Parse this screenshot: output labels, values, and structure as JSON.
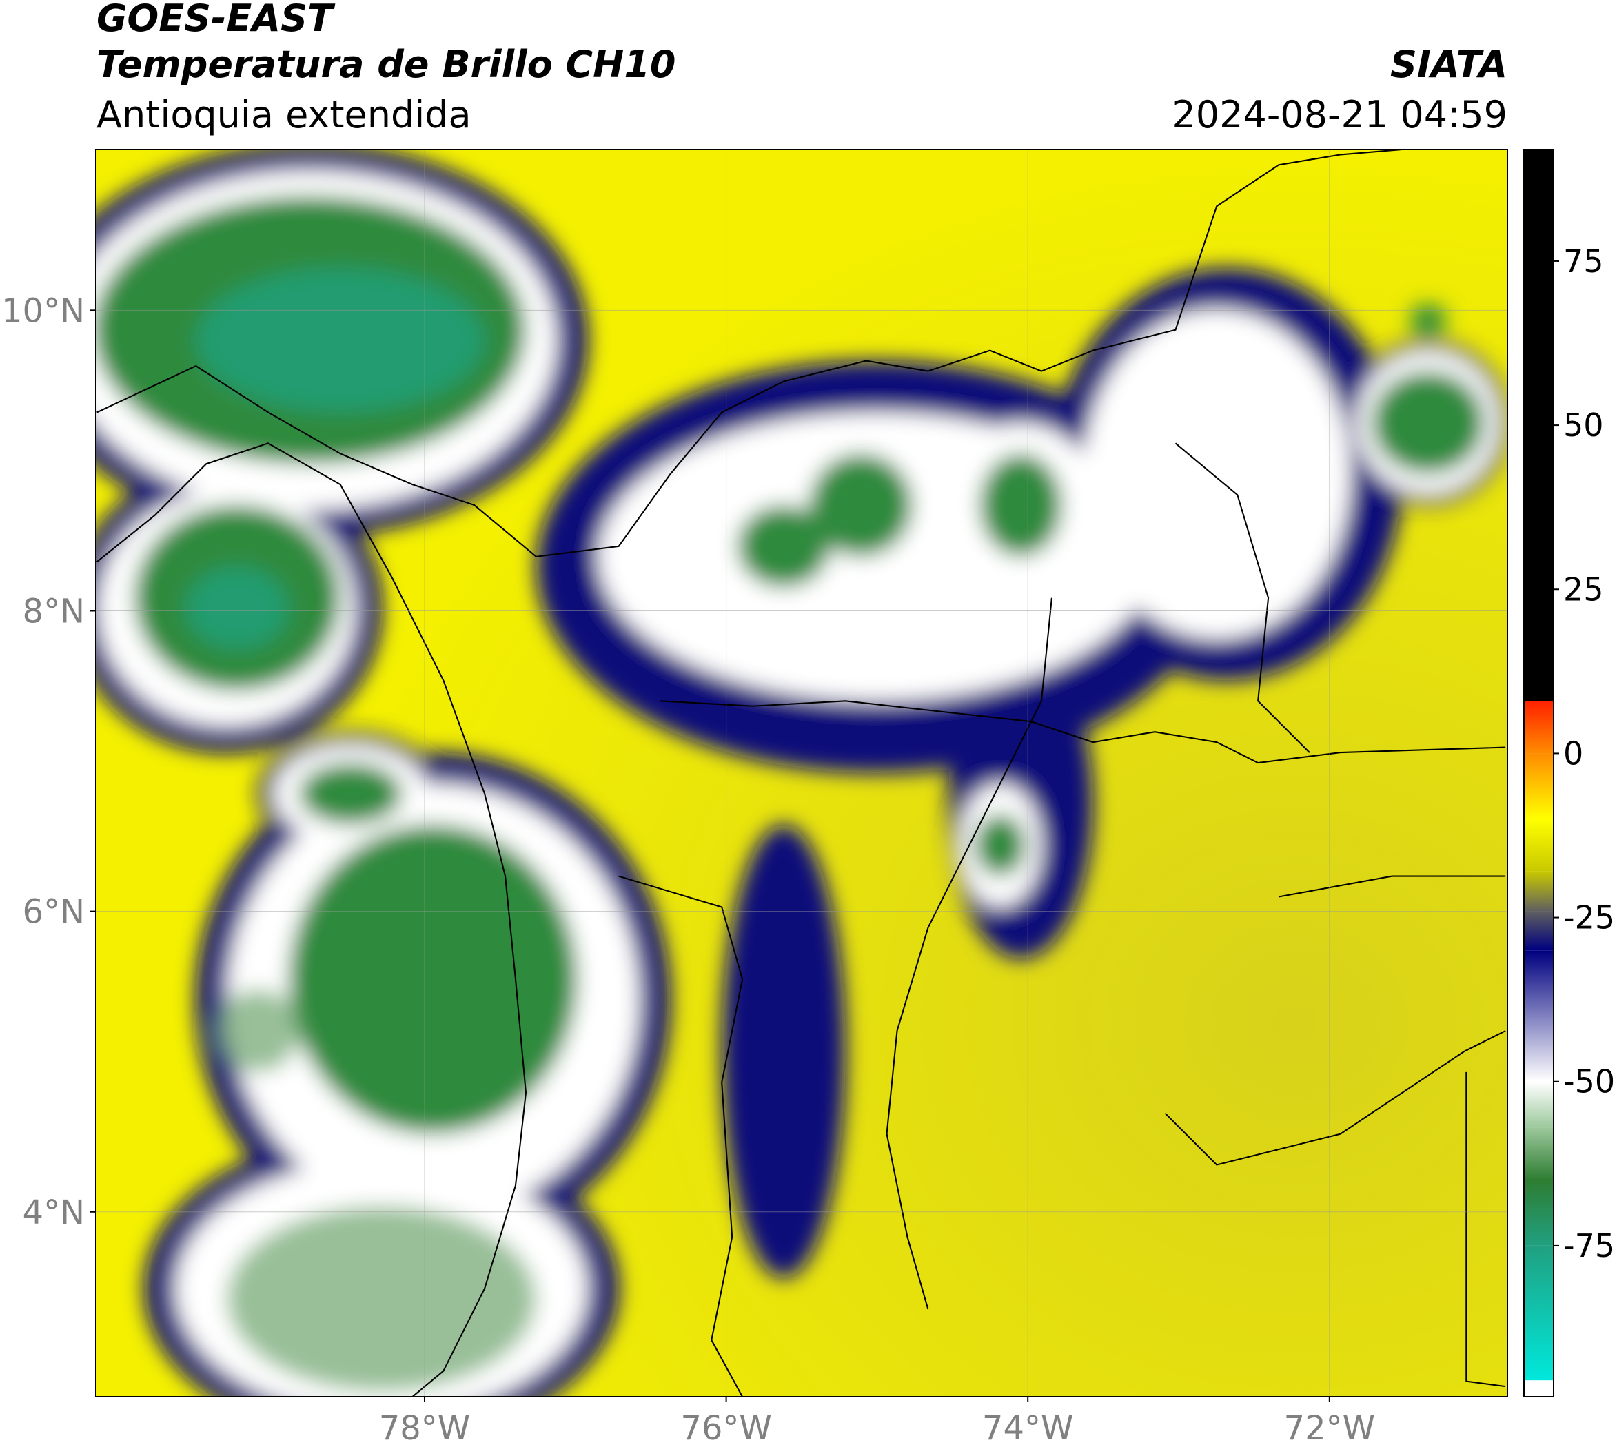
{
  "header": {
    "title": "GOES-EAST",
    "subtitle": "Temperatura de Brillo CH10",
    "region": "Antioquia extendida",
    "source": "SIATA",
    "datetime": "2024-08-21 04:59"
  },
  "map": {
    "xlim": [
      -80.18,
      -70.82
    ],
    "ylim": [
      2.77,
      11.07
    ],
    "xticks": [
      {
        "value": -78,
        "label": "78°W"
      },
      {
        "value": -76,
        "label": "76°W"
      },
      {
        "value": -74,
        "label": "74°W"
      },
      {
        "value": -72,
        "label": "72°W"
      }
    ],
    "yticks": [
      {
        "value": 4,
        "label": "4°N"
      },
      {
        "value": 6,
        "label": "6°N"
      },
      {
        "value": 8,
        "label": "8°N"
      },
      {
        "value": 10,
        "label": "10°N"
      }
    ],
    "grid": true
  },
  "colorbar": {
    "lim": [
      -98,
      92
    ],
    "ticks": [
      -75,
      -50,
      -25,
      0,
      25,
      50,
      75
    ],
    "stops": [
      {
        "value": -98,
        "color": "#ffffff"
      },
      {
        "value": -95.5,
        "color": "#ffffff"
      },
      {
        "value": -95.5,
        "color": "#00e8dc"
      },
      {
        "value": -75,
        "color": "#20a080"
      },
      {
        "value": -65,
        "color": "#2e7d32"
      },
      {
        "value": -57,
        "color": "#9cc89c"
      },
      {
        "value": -50,
        "color": "#ffffff"
      },
      {
        "value": -40,
        "color": "#8080c0"
      },
      {
        "value": -30,
        "color": "#000080"
      },
      {
        "value": -24,
        "color": "#606060"
      },
      {
        "value": -18,
        "color": "#c8c800"
      },
      {
        "value": -10,
        "color": "#ffff00"
      },
      {
        "value": 0,
        "color": "#ff8c00"
      },
      {
        "value": 8,
        "color": "#ff2000"
      },
      {
        "value": 8,
        "color": "#000000"
      },
      {
        "value": 92,
        "color": "#000000"
      }
    ]
  }
}
